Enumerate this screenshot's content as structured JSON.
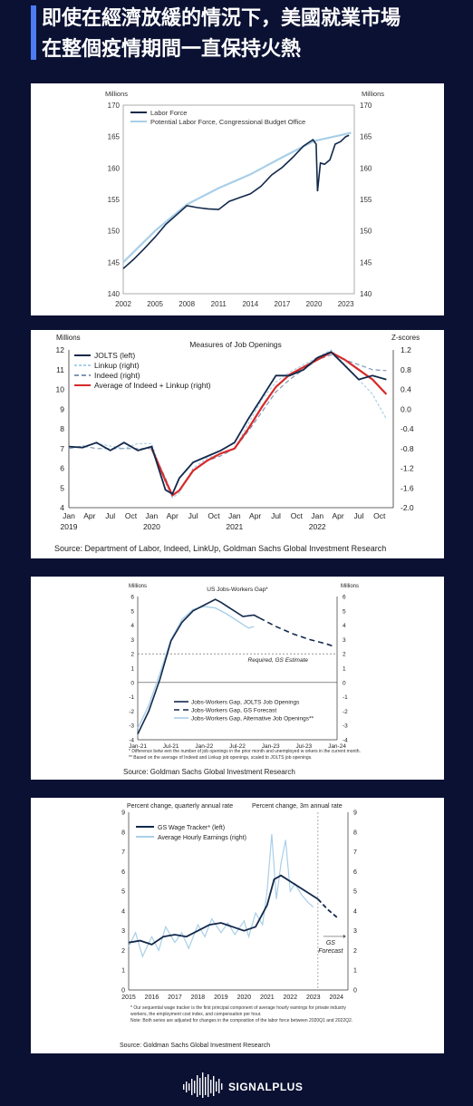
{
  "header": {
    "title_line1": "即使在經濟放緩的情況下，美國就業市場",
    "title_line2": "在整個疫情期間一直保持火熱"
  },
  "brand": {
    "name": "SIGNALPLUS"
  },
  "chart_data": [
    {
      "type": "line",
      "title": "",
      "ylabel_left": "Millions",
      "ylabel_right": "Millions",
      "ylim": [
        140,
        170
      ],
      "yticks": [
        140,
        145,
        150,
        155,
        160,
        165,
        170
      ],
      "xlim": [
        2002,
        2023.8
      ],
      "xticks": [
        2002,
        2005,
        2008,
        2011,
        2014,
        2017,
        2020,
        2023
      ],
      "series": [
        {
          "name": "Labor Force",
          "color": "#13294b",
          "x": [
            2002,
            2003,
            2004,
            2005,
            2006,
            2007,
            2008,
            2009,
            2010,
            2011,
            2012,
            2013,
            2014,
            2015,
            2016,
            2017,
            2018,
            2019,
            2019.9,
            2020.2,
            2020.33,
            2020.6,
            2021,
            2021.5,
            2022,
            2022.5,
            2023,
            2023.3
          ],
          "y": [
            144,
            145.5,
            147.2,
            149,
            151,
            152.5,
            154,
            153.7,
            153.5,
            153.4,
            154.7,
            155.3,
            155.9,
            157.1,
            158.9,
            160.1,
            161.7,
            163.5,
            164.5,
            163.8,
            156.3,
            160.8,
            160.6,
            161.3,
            163.8,
            164.2,
            165.0,
            165.2
          ]
        },
        {
          "name": "Potential Labor Force, Congressional Budget Office",
          "color": "#a9cfe8",
          "x": [
            2002,
            2005,
            2008,
            2011,
            2014,
            2017,
            2020,
            2023.5
          ],
          "y": [
            145,
            150,
            154.2,
            156.8,
            159,
            161.7,
            164.3,
            165.6
          ]
        }
      ]
    },
    {
      "type": "line",
      "title": "Measures of Job Openings",
      "ylabel_left": "Millions",
      "ylabel_right": "Z-scores",
      "ylim": [
        4,
        12
      ],
      "yticks": [
        4,
        5,
        6,
        7,
        8,
        9,
        10,
        11,
        12
      ],
      "ylim_right": [
        -2.0,
        1.2
      ],
      "yticks_right": [
        -2.0,
        -1.6,
        -1.2,
        -0.8,
        -0.4,
        0.0,
        0.4,
        0.8,
        1.2
      ],
      "xtick_labels": [
        "Jan",
        "Apr",
        "Jul",
        "Oct",
        "Jan",
        "Apr",
        "Jul",
        "Oct",
        "Jan",
        "Apr",
        "Jul",
        "Oct",
        "Jan",
        "Apr",
        "Jul",
        "Oct"
      ],
      "year_labels": [
        {
          "label": "2019",
          "x": 0
        },
        {
          "label": "2020",
          "x": 12
        },
        {
          "label": "2021",
          "x": 24
        },
        {
          "label": "2022",
          "x": 36
        }
      ],
      "series": [
        {
          "name": "JOLTS (left)",
          "color": "#13294b",
          "dash": "",
          "x": [
            0,
            2,
            4,
            6,
            8,
            10,
            12,
            14,
            15,
            16,
            18,
            20,
            22,
            24,
            26,
            28,
            30,
            32,
            34,
            36,
            38,
            40,
            42,
            44,
            46
          ],
          "y": [
            7.1,
            7.05,
            7.3,
            6.9,
            7.3,
            6.9,
            7.1,
            4.9,
            4.7,
            5.5,
            6.3,
            6.6,
            6.9,
            7.3,
            8.5,
            9.6,
            10.7,
            10.7,
            11.0,
            11.6,
            11.9,
            11.2,
            10.5,
            10.7,
            10.5
          ]
        },
        {
          "name": "Linkup (right)",
          "color": "#a9cfe8",
          "dash": "3 2",
          "x": [
            0,
            2,
            4,
            6,
            8,
            10,
            12,
            14,
            15,
            16,
            18,
            20,
            22,
            24,
            26,
            28,
            30,
            32,
            34,
            36,
            38,
            40,
            42,
            44,
            46
          ],
          "y": [
            -0.8,
            -0.75,
            -0.7,
            -0.75,
            -0.8,
            -0.7,
            -0.7,
            -1.5,
            -1.8,
            -1.7,
            -1.2,
            -1.0,
            -0.9,
            -0.8,
            -0.3,
            0.2,
            0.55,
            0.75,
            0.9,
            1.05,
            1.2,
            0.9,
            0.6,
            0.3,
            -0.2
          ]
        },
        {
          "name": "Indeed (right)",
          "color": "#7f97b8",
          "dash": "5 3",
          "x": [
            0,
            2,
            4,
            6,
            8,
            10,
            12,
            14,
            15,
            16,
            18,
            20,
            22,
            24,
            26,
            28,
            30,
            32,
            34,
            36,
            38,
            40,
            42,
            44,
            46
          ],
          "y": [
            -0.8,
            -0.75,
            -0.8,
            -0.8,
            -0.8,
            -0.8,
            -0.8,
            -1.4,
            -1.75,
            -1.65,
            -1.25,
            -1.05,
            -0.95,
            -0.8,
            -0.45,
            -0.05,
            0.35,
            0.6,
            0.8,
            1.0,
            1.1,
            1.0,
            0.9,
            0.8,
            0.78
          ]
        },
        {
          "name": "Average of Indeed + Linkup (right)",
          "color": "#d62a2a",
          "dash": "",
          "x": [
            12,
            14,
            15,
            16,
            18,
            20,
            22,
            24,
            26,
            28,
            30,
            32,
            34,
            36,
            38,
            40,
            42,
            44,
            46
          ],
          "y": [
            -0.8,
            -1.45,
            -1.75,
            -1.65,
            -1.25,
            -1.05,
            -0.9,
            -0.8,
            -0.4,
            0.05,
            0.45,
            0.7,
            0.85,
            1.0,
            1.15,
            1.0,
            0.8,
            0.6,
            0.3
          ]
        }
      ]
    },
    {
      "type": "line",
      "title": "US Jobs-Workers Gap*",
      "ylabel_left": "Millions",
      "ylabel_right": "Millions",
      "ylim": [
        -4,
        6
      ],
      "yticks": [
        -4,
        -3,
        -2,
        -1,
        0,
        1,
        2,
        3,
        4,
        5,
        6
      ],
      "xtick_labels": [
        "Jan-21",
        "Jul-21",
        "Jan-22",
        "Jul-22",
        "Jan-23",
        "Jul-23",
        "Jan-24"
      ],
      "xtick_months": [
        0,
        6,
        12,
        18,
        24,
        30,
        36
      ],
      "reference_line": {
        "y": 2,
        "label": "Required,  GS Estimate"
      },
      "series": [
        {
          "name": "Jobs-Workers Gap, JOLTS Job Openings",
          "color": "#13294b",
          "dash": "",
          "x": [
            0,
            2,
            4,
            6,
            8,
            10,
            12,
            14,
            15,
            17,
            19,
            21,
            22
          ],
          "y": [
            -3.6,
            -2.0,
            0.2,
            2.9,
            4.2,
            5.0,
            5.4,
            5.8,
            5.6,
            5.1,
            4.6,
            4.7,
            4.5
          ]
        },
        {
          "name": "Jobs-Workers Gap, GS Forecast",
          "color": "#13294b",
          "dash": "6 4",
          "x": [
            22,
            25,
            28,
            31,
            34,
            35.5
          ],
          "y": [
            4.5,
            3.9,
            3.4,
            3.0,
            2.7,
            2.5
          ]
        },
        {
          "name": "Jobs-Workers Gap, Alternative Job Openings**",
          "color": "#a9cfe8",
          "dash": "",
          "x": [
            0,
            2,
            4,
            6,
            8,
            10,
            12,
            14,
            16,
            18,
            20,
            21
          ],
          "y": [
            -3.2,
            -1.6,
            0.6,
            3.0,
            4.4,
            5.1,
            5.3,
            5.2,
            4.8,
            4.3,
            3.8,
            3.9
          ]
        }
      ],
      "footnotes": [
        "* Difference betw een the number of job openings in the prior month and unemployed w orkers in the current month.",
        "** Based on the average of Indeed and Linkup job openings, scaled to JOLTS job openings."
      ]
    },
    {
      "type": "line",
      "title": "",
      "ylabel_left": "Percent change, quarterly annual rate",
      "ylabel_right": "Percent change, 3m annual rate",
      "ylim": [
        0,
        9
      ],
      "yticks": [
        0,
        1,
        2,
        3,
        4,
        5,
        6,
        7,
        8,
        9
      ],
      "xlim": [
        2015,
        2024.5
      ],
      "xticks": [
        2015,
        2016,
        2017,
        2018,
        2019,
        2020,
        2021,
        2022,
        2023,
        2024
      ],
      "forecast_start": 2023.2,
      "forecast_label": "GS Forecast",
      "series": [
        {
          "name": "GS Wage Tracker* (left)",
          "color": "#13294b",
          "dash": "",
          "x": [
            2015,
            2015.5,
            2016,
            2016.5,
            2017,
            2017.5,
            2018,
            2018.5,
            2019,
            2019.5,
            2020,
            2020.5,
            2021,
            2021.3,
            2021.6,
            2022,
            2022.4,
            2022.8,
            2023.2
          ],
          "y": [
            2.4,
            2.5,
            2.3,
            2.7,
            2.8,
            2.7,
            3.0,
            3.3,
            3.4,
            3.2,
            3.0,
            3.2,
            4.3,
            5.6,
            5.8,
            5.5,
            5.2,
            4.9,
            4.6
          ]
        },
        {
          "name": "GS Forecast",
          "color": "#13294b",
          "dash": "5 3",
          "x": [
            2023.2,
            2023.6,
            2024.1
          ],
          "y": [
            4.6,
            4.1,
            3.6
          ]
        },
        {
          "name": "Average Hourly Earnings (right)",
          "color": "#a9cfe8",
          "dash": "",
          "x": [
            2015,
            2015.3,
            2015.6,
            2016,
            2016.3,
            2016.6,
            2017,
            2017.3,
            2017.6,
            2018,
            2018.3,
            2018.6,
            2019,
            2019.3,
            2019.6,
            2020,
            2020.2,
            2020.5,
            2020.8,
            2021,
            2021.2,
            2021.4,
            2021.6,
            2021.8,
            2022,
            2022.2,
            2022.5,
            2022.8,
            2023
          ],
          "y": [
            2.2,
            2.9,
            1.7,
            2.7,
            2.0,
            3.2,
            2.4,
            2.9,
            2.1,
            3.3,
            2.7,
            3.6,
            2.9,
            3.4,
            2.8,
            3.5,
            2.7,
            3.9,
            3.3,
            5.0,
            7.9,
            4.6,
            6.4,
            7.6,
            5.0,
            5.4,
            4.8,
            4.4,
            4.2
          ]
        }
      ],
      "footnotes": [
        "* Our sequential wage tracker is the first principal component of average hourly earnings for private industry workers, the employment cost index, and compensation per hour.",
        "Note: Both series are adjusted for changes in the composition of the labor force between 2020Q1 and 2022Q2."
      ]
    }
  ],
  "sources": {
    "chart2": "Source: Department of Labor, Indeed, LinkUp, Goldman Sachs Global Investment Research",
    "chart3": "Source: Goldman Sachs Global Investment Research",
    "chart4": "Source: Goldman Sachs Global Investment Research"
  }
}
